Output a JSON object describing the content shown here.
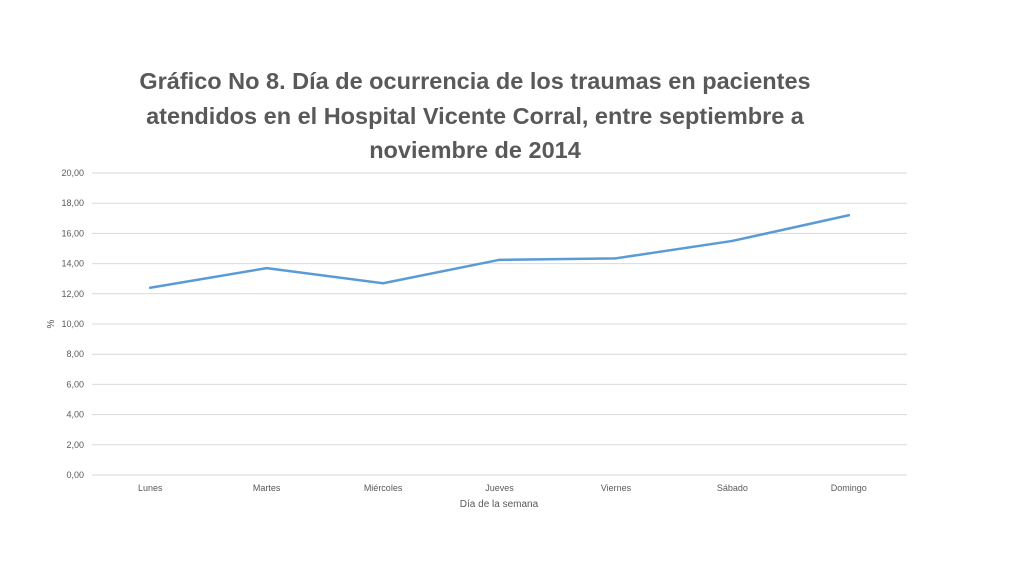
{
  "chart_data": {
    "type": "line",
    "title": "Gráfico No 8. Día de ocurrencia de los traumas en pacientes atendidos en el Hospital Vicente Corral, entre septiembre a noviembre de 2014",
    "xlabel": "Día de la semana",
    "ylabel": "%",
    "categories": [
      "Lunes",
      "Martes",
      "Miércoles",
      "Jueves",
      "Viernes",
      "Sábado",
      "Domingo"
    ],
    "series": [
      {
        "values": [
          12.4,
          13.7,
          12.7,
          14.25,
          14.35,
          15.5,
          17.2
        ]
      }
    ],
    "ylim": [
      0,
      20
    ],
    "yticks": [
      "0,00",
      "2,00",
      "4,00",
      "6,00",
      "8,00",
      "10,00",
      "12,00",
      "14,00",
      "16,00",
      "18,00",
      "20,00"
    ],
    "grid": true,
    "legend": "none",
    "colors": {
      "line": "#5b9bd5",
      "grid": "#d9d9d9",
      "text": "#595959"
    }
  }
}
